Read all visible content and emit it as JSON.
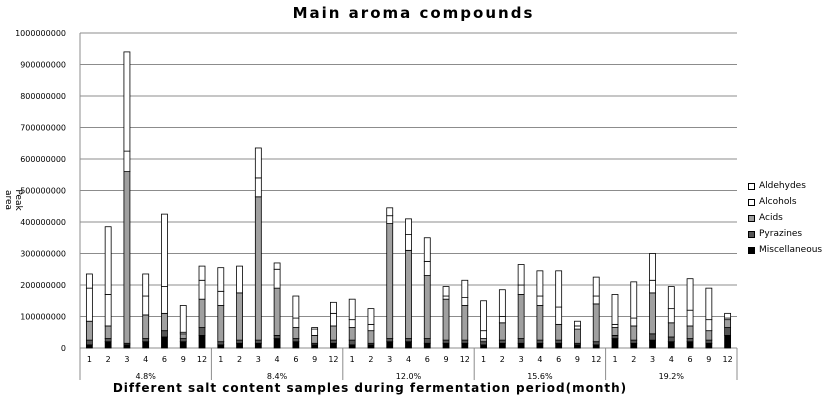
{
  "chart_data": {
    "type": "bar",
    "stacked": true,
    "title": "Main aroma compounds",
    "xlabel": "Different salt content samples during fermentation period(month)",
    "ylabel": "Peak area",
    "ylim": [
      0,
      1000000000
    ],
    "yticks": [
      0,
      100000000,
      200000000,
      300000000,
      400000000,
      500000000,
      600000000,
      700000000,
      800000000,
      900000000,
      1000000000
    ],
    "grid": true,
    "legend_position": "right",
    "groups": [
      {
        "label": "4.8%",
        "months": [
          "1",
          "2",
          "3",
          "4",
          "6",
          "9",
          "12"
        ]
      },
      {
        "label": "8.4%",
        "months": [
          "1",
          "2",
          "3",
          "4",
          "6",
          "9",
          "12"
        ]
      },
      {
        "label": "12.0%",
        "months": [
          "1",
          "2",
          "3",
          "4",
          "6",
          "9",
          "12"
        ]
      },
      {
        "label": "15.6%",
        "months": [
          "1",
          "2",
          "3",
          "4",
          "6",
          "9",
          "12"
        ]
      },
      {
        "label": "19.2%",
        "months": [
          "1",
          "2",
          "3",
          "4",
          "6",
          "9",
          "12"
        ]
      }
    ],
    "series": [
      {
        "name": "Miscellaneous",
        "color": "#000000",
        "values": [
          10000000,
          20000000,
          10000000,
          20000000,
          35000000,
          20000000,
          40000000,
          10000000,
          15000000,
          15000000,
          30000000,
          20000000,
          10000000,
          15000000,
          10000000,
          10000000,
          20000000,
          20000000,
          15000000,
          15000000,
          15000000,
          10000000,
          15000000,
          15000000,
          15000000,
          15000000,
          10000000,
          10000000,
          30000000,
          15000000,
          25000000,
          20000000,
          20000000,
          15000000,
          40000000
        ]
      },
      {
        "name": "Pyrazines",
        "color": "#555555",
        "values": [
          15000000,
          10000000,
          5000000,
          10000000,
          20000000,
          10000000,
          25000000,
          10000000,
          10000000,
          10000000,
          10000000,
          10000000,
          5000000,
          10000000,
          15000000,
          5000000,
          10000000,
          10000000,
          15000000,
          10000000,
          10000000,
          10000000,
          10000000,
          15000000,
          10000000,
          10000000,
          5000000,
          10000000,
          10000000,
          10000000,
          20000000,
          15000000,
          10000000,
          10000000,
          25000000
        ]
      },
      {
        "name": "Acids",
        "color": "#a0a0a0",
        "values": [
          60000000,
          40000000,
          545000000,
          75000000,
          55000000,
          15000000,
          90000000,
          115000000,
          150000000,
          455000000,
          150000000,
          35000000,
          25000000,
          45000000,
          40000000,
          40000000,
          365000000,
          280000000,
          200000000,
          130000000,
          110000000,
          10000000,
          55000000,
          140000000,
          110000000,
          50000000,
          45000000,
          120000000,
          25000000,
          45000000,
          130000000,
          45000000,
          40000000,
          30000000,
          25000000
        ]
      },
      {
        "name": "Alcohols",
        "color": "#ffffff",
        "values": [
          105000000,
          100000000,
          65000000,
          60000000,
          85000000,
          5000000,
          60000000,
          45000000,
          85000000,
          60000000,
          60000000,
          30000000,
          20000000,
          40000000,
          25000000,
          20000000,
          25000000,
          50000000,
          45000000,
          10000000,
          25000000,
          25000000,
          20000000,
          30000000,
          30000000,
          55000000,
          10000000,
          25000000,
          10000000,
          25000000,
          40000000,
          45000000,
          50000000,
          35000000,
          5000000
        ]
      },
      {
        "name": "Aldehydes",
        "color": "#ffffff",
        "values": [
          45000000,
          215000000,
          315000000,
          70000000,
          230000000,
          85000000,
          45000000,
          75000000,
          0,
          95000000,
          20000000,
          70000000,
          5000000,
          35000000,
          65000000,
          50000000,
          25000000,
          50000000,
          75000000,
          30000000,
          55000000,
          95000000,
          85000000,
          65000000,
          80000000,
          115000000,
          15000000,
          60000000,
          95000000,
          115000000,
          85000000,
          70000000,
          100000000,
          100000000,
          15000000
        ]
      }
    ]
  }
}
